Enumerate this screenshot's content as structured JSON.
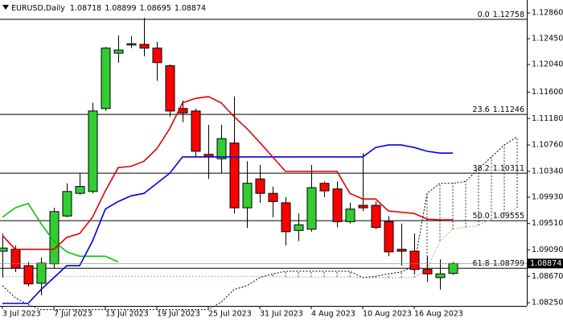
{
  "chart_data": {
    "type": "candlestick",
    "title": "EURUSD,Daily",
    "ohlc": [
      1.08718,
      1.08899,
      1.08695,
      1.08874
    ],
    "last_price": 1.08874,
    "categories": [
      "3 Jul 2023",
      null,
      null,
      null,
      "7 Jul 2023",
      null,
      null,
      null,
      "13 Jul 2023",
      null,
      null,
      null,
      "19 Jul 2023",
      null,
      null,
      null,
      "25 Jul 2023",
      null,
      null,
      null,
      "31 Jul 2023",
      null,
      null,
      null,
      "4 Aug 2023",
      null,
      null,
      null,
      "10 Aug 2023",
      null,
      null,
      null,
      "16 Aug 2023",
      null,
      null,
      null,
      null,
      null,
      null,
      null,
      null
    ],
    "open": [
      1.0907,
      1.091,
      1.0884,
      1.0856,
      1.0887,
      1.0963,
      1.0999,
      1.1002,
      1.1134,
      1.1222,
      1.1235,
      1.1236,
      1.123,
      1.1202,
      1.1134,
      1.113,
      1.1061,
      1.1054,
      1.1079,
      1.0976,
      1.1022,
      1.0999,
      1.0984,
      1.094,
      1.0942,
      1.1015,
      1.1006,
      1.0954,
      1.098,
      1.098,
      1.0954,
      1.091,
      1.0907,
      1.0878,
      1.0865,
      1.08718,
      null,
      null,
      null,
      null,
      null
    ],
    "high": [
      1.0935,
      1.0916,
      1.089,
      1.0897,
      1.0976,
      1.1015,
      1.1031,
      1.1143,
      1.1232,
      1.125,
      1.1249,
      1.1278,
      1.124,
      1.1204,
      1.1147,
      1.1134,
      1.1108,
      1.1108,
      1.1153,
      1.105,
      1.1044,
      1.101,
      1.0993,
      1.0967,
      1.1044,
      1.1018,
      1.1018,
      1.0984,
      1.1063,
      1.0986,
      1.0963,
      1.0951,
      1.0935,
      1.0899,
      1.0894,
      1.08899,
      null,
      null,
      null,
      null,
      null
    ],
    "low": [
      1.0865,
      1.0874,
      1.0851,
      1.0837,
      1.088,
      1.0961,
      1.0997,
      1.0999,
      1.113,
      1.1207,
      1.123,
      1.1217,
      1.1178,
      1.1121,
      1.1112,
      1.1057,
      1.1022,
      1.1031,
      1.0967,
      1.0944,
      1.0984,
      1.0961,
      1.0916,
      1.0923,
      1.0938,
      1.0993,
      1.0945,
      1.0951,
      1.0971,
      1.0942,
      1.0899,
      1.0884,
      1.0871,
      1.0858,
      1.0846,
      1.08695,
      null,
      null,
      null,
      null,
      null
    ],
    "close": [
      1.0912,
      1.088,
      1.0855,
      1.0888,
      1.097,
      1.1002,
      1.101,
      1.113,
      1.123,
      1.1227,
      1.1237,
      1.123,
      1.1207,
      1.113,
      1.1127,
      1.1066,
      1.1057,
      1.1086,
      1.0976,
      1.1015,
      1.0999,
      1.0986,
      1.0938,
      1.0949,
      1.1008,
      1.1003,
      1.0954,
      1.0974,
      1.0976,
      1.0945,
      1.0906,
      1.0907,
      1.0878,
      1.0871,
      1.0871,
      1.08874,
      null,
      null,
      null,
      null,
      null
    ],
    "up_color": "#32cd32",
    "down_color": "#ff0000",
    "series": [
      {
        "color": "#e8a060",
        "style": "dotted",
        "values": [
          1.0867,
          1.0867,
          1.0867,
          1.0867,
          1.0867,
          1.0867,
          1.0867,
          1.0867,
          1.0867,
          1.0867,
          1.0867,
          1.0867,
          1.0867,
          1.0867,
          1.0867,
          1.0867,
          1.0867,
          1.0867,
          1.0867,
          1.0867,
          1.0867,
          1.0867,
          1.0866,
          1.0866,
          1.0866,
          1.0866,
          1.0866,
          1.0866,
          1.0865,
          1.0865,
          1.0865,
          1.0865,
          1.0865,
          1.0878,
          1.0923,
          1.0942,
          1.0945,
          1.0948,
          1.0958,
          1.0967,
          1.0976
        ]
      },
      {
        "color": "#000000",
        "style": "dotted",
        "values": [
          1.0852,
          1.0833,
          1.0822,
          1.0814,
          1.0814,
          1.0814,
          1.0814,
          1.0814,
          1.0814,
          1.0814,
          1.0814,
          1.0814,
          1.0814,
          1.0814,
          1.0814,
          1.0814,
          1.0814,
          1.0826,
          1.0846,
          1.0852,
          1.0865,
          1.0871,
          1.0875,
          1.0875,
          1.0875,
          1.0875,
          1.0875,
          1.0875,
          1.0865,
          1.0867,
          1.0871,
          1.0874,
          1.0884,
          1.0999,
          1.1015,
          1.1015,
          1.1018,
          1.1038,
          1.1057,
          1.1076,
          1.1089
        ]
      },
      {
        "color": "#00c800",
        "style": "solid",
        "values": [
          1.0961,
          1.0976,
          1.0983,
          1.0951,
          1.0923,
          1.0906,
          1.0899,
          1.0899,
          1.0899,
          1.089,
          null,
          null,
          null,
          null,
          null,
          null,
          null,
          null,
          null,
          null,
          null,
          null,
          null,
          null,
          null,
          null,
          null,
          null,
          null,
          null,
          null,
          null,
          null,
          null,
          null,
          null,
          null,
          null,
          null,
          null,
          null
        ]
      },
      {
        "color": "#0000dc",
        "style": "solid",
        "values": [
          1.0824,
          1.0824,
          1.0824,
          1.0846,
          1.0865,
          1.0884,
          1.0884,
          1.0923,
          1.0974,
          1.0986,
          1.0995,
          1.0999,
          1.1015,
          1.1031,
          1.1057,
          1.1057,
          1.1057,
          1.1057,
          1.1057,
          1.1057,
          1.1057,
          1.1057,
          1.1057,
          1.1057,
          1.1057,
          1.1057,
          1.1057,
          1.1057,
          1.1057,
          1.1072,
          1.1076,
          1.1076,
          1.1072,
          1.1066,
          1.1063,
          1.1063,
          null,
          null,
          null,
          null,
          null
        ]
      },
      {
        "color": "#e00000",
        "style": "solid",
        "values": [
          1.0932,
          1.091,
          1.091,
          1.091,
          1.091,
          1.0929,
          1.0935,
          1.0961,
          1.1003,
          1.104,
          1.1042,
          1.105,
          1.107,
          1.1102,
          1.1143,
          1.115,
          1.1153,
          1.1143,
          1.1121,
          1.1102,
          1.108,
          1.1057,
          1.1034,
          1.1034,
          1.1034,
          1.1034,
          1.1034,
          1.0999,
          1.099,
          1.099,
          1.0971,
          1.0969,
          1.0967,
          1.0958,
          1.0957,
          1.0957,
          null,
          null,
          null,
          null,
          null
        ]
      }
    ],
    "fib_levels": [
      {
        "level": "0.0",
        "price": 1.12758
      },
      {
        "level": "23.6",
        "price": 1.11246
      },
      {
        "level": "38.2",
        "price": 1.10311
      },
      {
        "level": "50.0",
        "price": 1.09555
      },
      {
        "level": "61.8",
        "price": 1.08799
      }
    ],
    "ylim": [
      1.082,
      1.1304
    ],
    "yticks": [
      {
        "value": 1.1286,
        "label": "1.12860"
      },
      {
        "value": 1.1245,
        "label": "1.12450"
      },
      {
        "value": 1.1204,
        "label": "1.12040"
      },
      {
        "value": 1.116,
        "label": "1.11600"
      },
      {
        "value": 1.1118,
        "label": "1.11180"
      },
      {
        "value": 1.1076,
        "label": "1.10760"
      },
      {
        "value": 1.1034,
        "label": "1.10340"
      },
      {
        "value": 1.0993,
        "label": "1.09930"
      },
      {
        "value": 1.0951,
        "label": "1.09510"
      },
      {
        "value": 1.0909,
        "label": "1.09090"
      },
      {
        "value": 1.0867,
        "label": "1.08670"
      },
      {
        "value": 1.0825,
        "label": "1.08250"
      }
    ]
  }
}
